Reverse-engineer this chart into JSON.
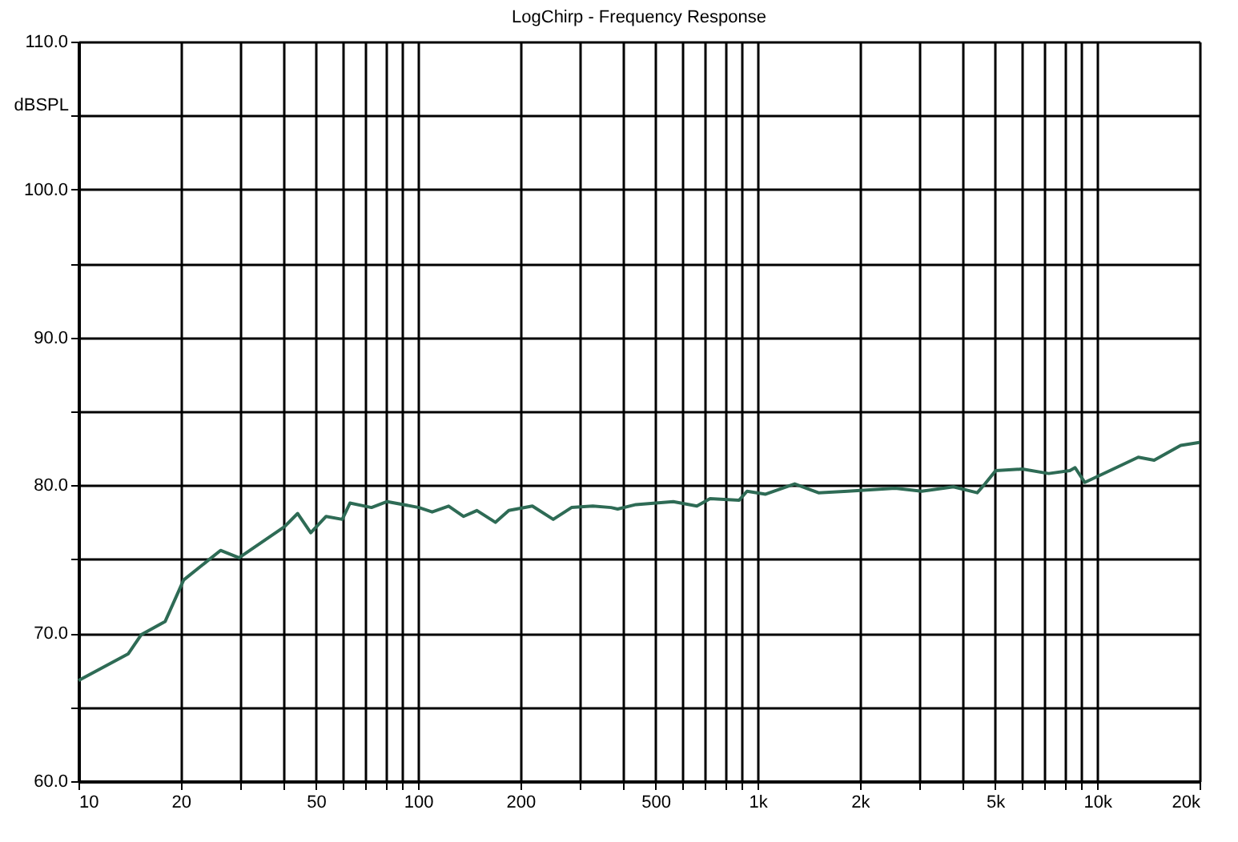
{
  "chart_data": {
    "type": "line",
    "title": "LogChirp - Frequency Response",
    "ylabel": "dBSPL",
    "x": [
      10,
      14,
      15.3,
      18,
      20.4,
      24,
      26.2,
      29.7,
      40.4,
      44.2,
      48.3,
      53.6,
      59.8,
      63,
      72.9,
      81.1,
      100.6,
      110,
      123,
      136,
      149,
      169,
      185,
      217,
      250,
      283,
      327,
      370,
      387,
      438,
      564,
      662,
      724,
      882,
      930,
      1055,
      1285,
      1510,
      1840,
      2540,
      3040,
      3770,
      4430,
      4670,
      5020,
      6010,
      7190,
      8300,
      8600,
      9180,
      10670,
      13200,
      14700,
      17600,
      20000
    ],
    "series": [
      {
        "color": "#2e6b55",
        "values": [
          66.8,
          68.6,
          69.9,
          70.8,
          73.6,
          74.9,
          75.6,
          75.1,
          77.2,
          78.1,
          76.8,
          77.9,
          77.7,
          78.8,
          78.5,
          78.9,
          78.5,
          78.2,
          78.6,
          77.9,
          78.3,
          77.5,
          78.3,
          78.6,
          77.7,
          78.5,
          78.6,
          78.5,
          78.4,
          78.7,
          78.9,
          78.6,
          79.1,
          79.0,
          79.6,
          79.4,
          80.1,
          79.5,
          79.6,
          79.8,
          79.6,
          79.9,
          79.5,
          80.1,
          81.0,
          81.1,
          80.8,
          81.0,
          81.2,
          80.2,
          80.9,
          81.9,
          81.7,
          82.7,
          82.9
        ]
      }
    ],
    "log": "x",
    "xlim": [
      10,
      20000
    ],
    "ylim": [
      60,
      110
    ],
    "xticks": [
      10,
      20,
      {
        "value": 30,
        "label": null
      },
      {
        "value": 40,
        "label": null
      },
      50,
      {
        "value": 60,
        "label": null
      },
      {
        "value": 70,
        "label": null
      },
      {
        "value": 80,
        "label": null
      },
      {
        "value": 90,
        "label": null
      },
      100,
      200,
      {
        "value": 300,
        "label": null
      },
      {
        "value": 400,
        "label": null
      },
      500,
      {
        "value": 600,
        "label": null
      },
      {
        "value": 700,
        "label": null
      },
      {
        "value": 800,
        "label": null
      },
      {
        "value": 900,
        "label": null
      },
      {
        "value": 1000,
        "label": "1k"
      },
      {
        "value": 2000,
        "label": "2k"
      },
      {
        "value": 3000,
        "label": null
      },
      {
        "value": 4000,
        "label": null
      },
      {
        "value": 5000,
        "label": "5k"
      },
      {
        "value": 6000,
        "label": null
      },
      {
        "value": 7000,
        "label": null
      },
      {
        "value": 8000,
        "label": null
      },
      {
        "value": 9000,
        "label": null
      },
      {
        "value": 10000,
        "label": "10k"
      },
      {
        "value": 20000,
        "label": "20k"
      }
    ],
    "yticks": [
      {
        "value": 60,
        "label": "60.0"
      },
      {
        "value": 65,
        "label": null
      },
      {
        "value": 70,
        "label": "70.0"
      },
      {
        "value": 75,
        "label": null
      },
      {
        "value": 80,
        "label": "80.0"
      },
      {
        "value": 85,
        "label": null
      },
      {
        "value": 90,
        "label": "90.0"
      },
      {
        "value": 95,
        "label": null
      },
      {
        "value": 100,
        "label": "100.0"
      },
      {
        "value": 105,
        "label": null
      },
      {
        "value": 110,
        "label": "110.0"
      }
    ],
    "grid": true,
    "marker": "none",
    "line_style": "solid"
  }
}
